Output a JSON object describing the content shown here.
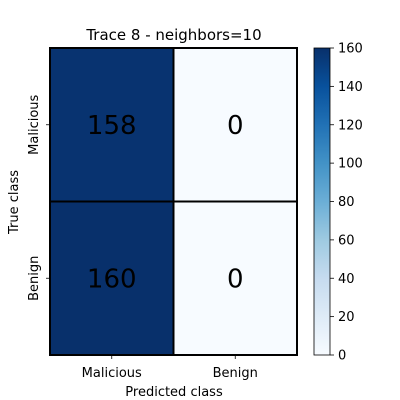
{
  "chart_data": {
    "type": "heatmap",
    "title": "Trace 8 - neighbors=10",
    "xlabel": "Predicted class",
    "ylabel": "True class",
    "x_categories": [
      "Malicious",
      "Benign"
    ],
    "y_categories": [
      "Malicious",
      "Benign"
    ],
    "values": [
      [
        158,
        0
      ],
      [
        160,
        0
      ]
    ],
    "colorbar": {
      "min": 0,
      "max": 160,
      "ticks": [
        0,
        20,
        40,
        60,
        80,
        100,
        120,
        140,
        160
      ],
      "colormap": "Blues",
      "low_color": "#f7fbff",
      "high_color": "#08306b"
    },
    "cell_text_colors": {
      "on_dark": "#ffffff",
      "on_light": "#262626"
    },
    "cell_border_color": "#000000",
    "grid": false,
    "legend": "colorbar-right"
  }
}
